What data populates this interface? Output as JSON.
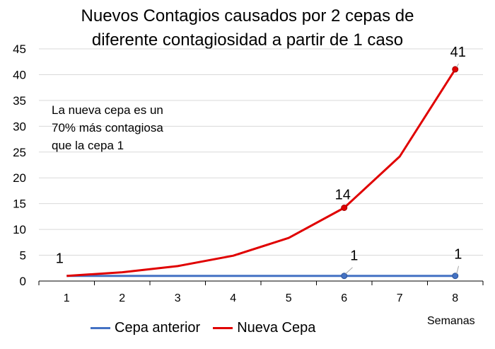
{
  "chart_data": {
    "type": "line",
    "title": [
      "Nuevos Contagios causados por 2 cepas de",
      "diferente contagiosidad a partir de 1 caso"
    ],
    "xlabel": "Semanas",
    "ylabel": "",
    "categories": [
      "1",
      "2",
      "3",
      "4",
      "5",
      "6",
      "7",
      "8"
    ],
    "ylim": [
      0,
      45
    ],
    "yticks": [
      "0",
      "5",
      "10",
      "15",
      "20",
      "25",
      "30",
      "35",
      "40",
      "45"
    ],
    "grid": true,
    "legend": "bottom",
    "series": [
      {
        "name": "Cepa anterior",
        "color": "#4472C4",
        "values": [
          1,
          1,
          1,
          1,
          1,
          1,
          1,
          1
        ],
        "markers": [
          {
            "index": 5,
            "label": "1"
          },
          {
            "index": 7,
            "label": "1"
          }
        ]
      },
      {
        "name": "Nueva Cepa",
        "color": "#E00000",
        "values": [
          1,
          1.7,
          2.89,
          4.91,
          8.35,
          14.2,
          24.14,
          41.03
        ],
        "markers": [
          {
            "index": 5,
            "label": "14"
          },
          {
            "index": 7,
            "label": "41"
          }
        ]
      }
    ],
    "start_label": "1",
    "annotation": [
      "La nueva cepa es un",
      "70% más contagiosa",
      "que la cepa 1"
    ]
  }
}
